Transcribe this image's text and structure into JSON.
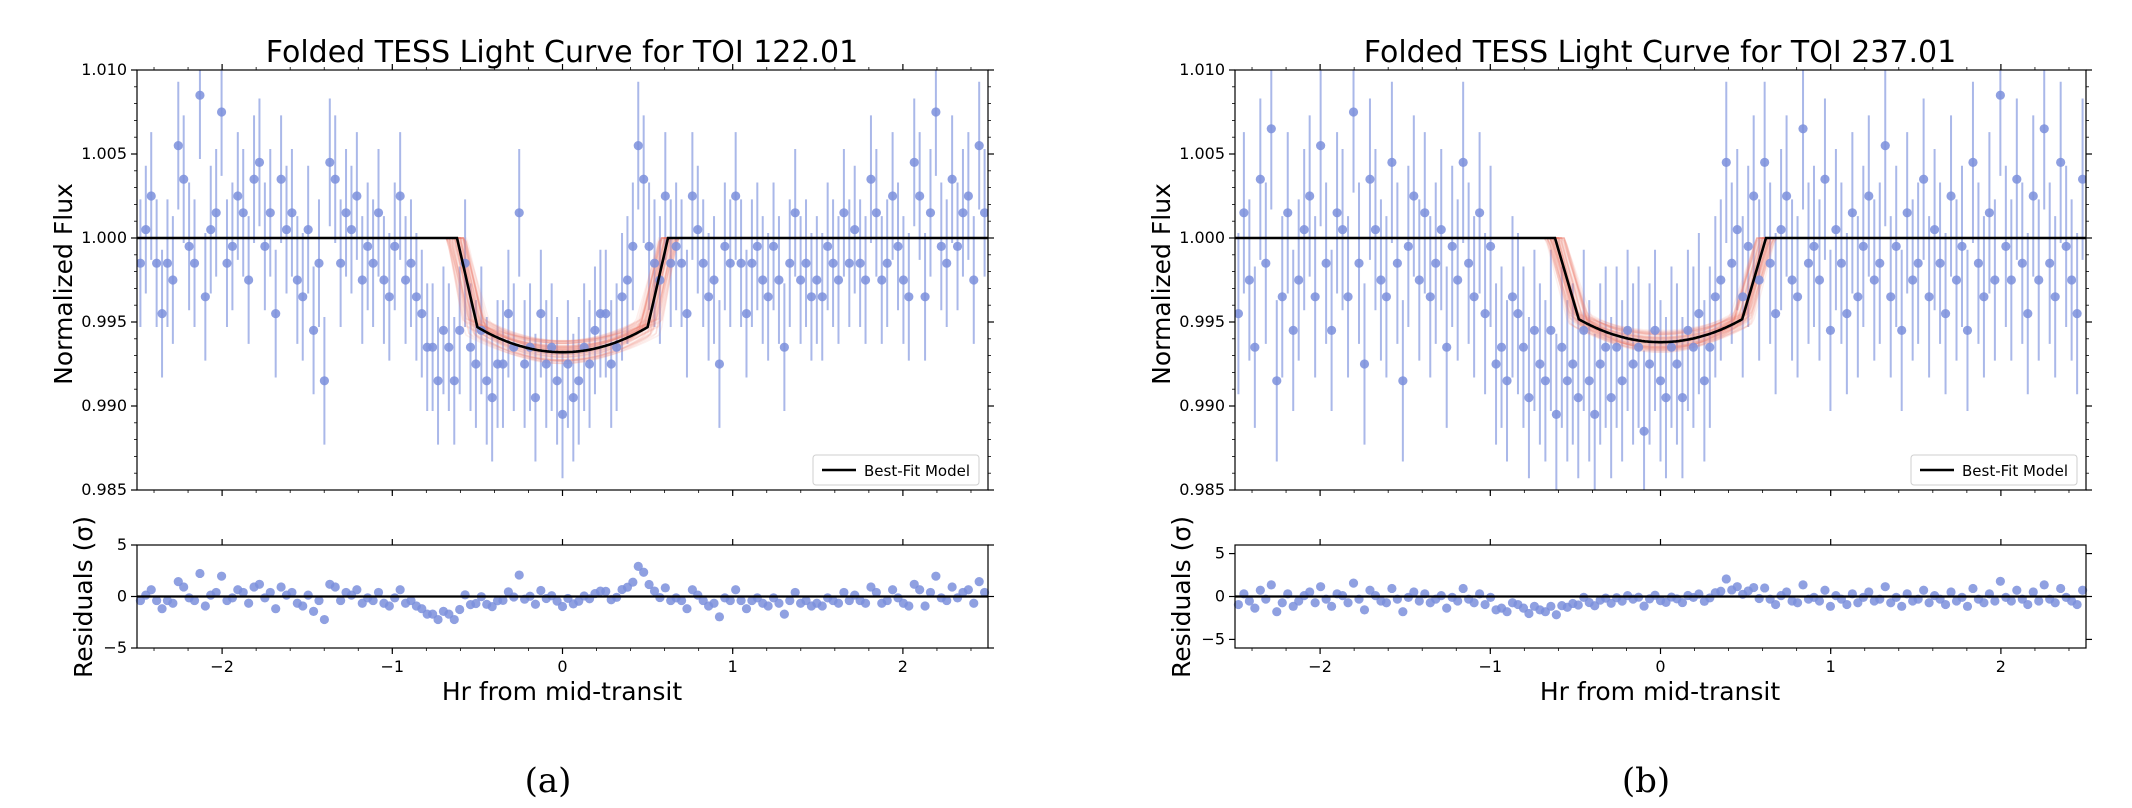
{
  "chart_data": [
    {
      "type": "scatter",
      "title": "Folded TESS Light Curve for TOI 122.01",
      "caption": "(a)",
      "xlabel": "Hr from mid-transit",
      "ylabel": "Normalized Flux",
      "residual_ylabel": "Residuals (σ)",
      "xlim": [
        -2.5,
        2.5
      ],
      "ylim": [
        0.985,
        1.01
      ],
      "residual_ylim": [
        -5,
        5
      ],
      "xticks": [
        -2,
        -1,
        0,
        1,
        2
      ],
      "yticks": [
        0.985,
        0.99,
        0.995,
        1.0,
        1.005,
        1.01
      ],
      "ytick_labels": [
        "0.985",
        "0.990",
        "0.995",
        "1.000",
        "1.005",
        "1.010"
      ],
      "residual_yticks": [
        -5,
        0,
        5
      ],
      "legend": {
        "entries": [
          "Best-Fit Model"
        ],
        "placement": "bottom-right"
      },
      "transit_model": {
        "depth": 0.0068,
        "half_duration_hr": 0.62,
        "ingress_hr": 0.12
      },
      "point_errorbar": 0.0038,
      "flux": [
        0.9985,
        1.0005,
        1.0025,
        0.9985,
        0.9955,
        0.9985,
        0.9975,
        1.0055,
        1.0035,
        0.9995,
        0.9985,
        1.0085,
        0.9965,
        1.0005,
        1.0015,
        1.0075,
        0.9985,
        0.9995,
        1.0025,
        1.0015,
        0.9975,
        1.0035,
        1.0045,
        0.9995,
        1.0015,
        0.9955,
        1.0035,
        1.0005,
        1.0015,
        0.9975,
        0.9965,
        1.0005,
        0.9945,
        0.9985,
        0.9915,
        1.0045,
        1.0035,
        0.9985,
        1.0015,
        1.0005,
        1.0025,
        0.9975,
        0.9995,
        0.9985,
        1.0015,
        0.9975,
        0.9965,
        0.9995,
        1.0025,
        0.9975,
        0.9985,
        0.9965,
        0.9955,
        0.9935,
        0.9935,
        0.9915,
        0.9945,
        0.9935,
        0.9915,
        0.9945,
        0.9985,
        0.9935,
        0.9925,
        0.9945,
        0.9915,
        0.9905,
        0.9925,
        0.9925,
        0.9955,
        0.9935,
        1.0015,
        0.9925,
        0.9935,
        0.9905,
        0.9955,
        0.9925,
        0.9935,
        0.9915,
        0.9895,
        0.9925,
        0.9905,
        0.9915,
        0.9935,
        0.9925,
        0.9945,
        0.9955,
        0.9955,
        0.9925,
        0.9935,
        0.9965,
        0.9975,
        0.9995,
        1.0055,
        1.0035,
        0.9995,
        0.9985,
        0.9975,
        1.0025,
        0.9985,
        0.9995,
        0.9985,
        0.9955,
        1.0025,
        1.0005,
        0.9985,
        0.9965,
        0.9975,
        0.9925,
        0.9995,
        0.9985,
        1.0025,
        0.9985,
        0.9955,
        0.9985,
        0.9995,
        0.9975,
        0.9965,
        0.9995,
        0.9975,
        0.9935,
        0.9985,
        1.0015,
        0.9975,
        0.9985,
        0.9965,
        0.9975,
        0.9965,
        0.9995,
        0.9985,
        0.9975,
        1.0015,
        0.9985,
        1.0005,
        0.9985,
        0.9975,
        1.0035,
        1.0015,
        0.9975,
        0.9985,
        1.0025,
        0.9995,
        0.9975,
        0.9965,
        1.0045,
        1.0025,
        0.9965,
        1.0015,
        1.0075,
        0.9995,
        0.9985,
        1.0035,
        0.9995,
        1.0015,
        1.0025,
        0.9975,
        1.0055,
        1.0015
      ]
    },
    {
      "type": "scatter",
      "title": "Folded TESS Light Curve for TOI 237.01",
      "caption": "(b)",
      "xlabel": "Hr from mid-transit",
      "ylabel": "Normalized Flux",
      "residual_ylabel": "Residuals (σ)",
      "xlim": [
        -2.5,
        2.5
      ],
      "ylim": [
        0.985,
        1.01
      ],
      "residual_ylim": [
        -6,
        6
      ],
      "xticks": [
        -2,
        -1,
        0,
        1,
        2
      ],
      "yticks": [
        0.985,
        0.99,
        0.995,
        1.0,
        1.005,
        1.01
      ],
      "ytick_labels": [
        "0.985",
        "0.990",
        "0.995",
        "1.000",
        "1.005",
        "1.010"
      ],
      "residual_yticks": [
        -5,
        0,
        5
      ],
      "legend": {
        "entries": [
          "Best-Fit Model"
        ],
        "placement": "bottom-right"
      },
      "transit_model": {
        "depth": 0.0062,
        "half_duration_hr": 0.62,
        "ingress_hr": 0.14
      },
      "point_errorbar": 0.0048,
      "flux": [
        0.9955,
        1.0015,
        0.9975,
        0.9935,
        1.0035,
        0.9985,
        1.0065,
        0.9915,
        0.9965,
        1.0015,
        0.9945,
        0.9975,
        1.0005,
        1.0025,
        0.9965,
        1.0055,
        0.9985,
        0.9945,
        1.0015,
        1.0005,
        0.9965,
        1.0075,
        0.9985,
        0.9925,
        1.0035,
        1.0005,
        0.9975,
        0.9965,
        1.0045,
        0.9985,
        0.9915,
        0.9995,
        1.0025,
        0.9975,
        1.0015,
        0.9965,
        0.9985,
        1.0005,
        0.9935,
        0.9995,
        0.9975,
        1.0045,
        0.9985,
        0.9965,
        1.0015,
        0.9955,
        0.9995,
        0.9925,
        0.9935,
        0.9915,
        0.9965,
        0.9955,
        0.9935,
        0.9905,
        0.9945,
        0.9925,
        0.9915,
        0.9945,
        0.9895,
        0.9935,
        0.9915,
        0.9925,
        0.9905,
        0.9945,
        0.9915,
        0.9895,
        0.9925,
        0.9935,
        0.9905,
        0.9935,
        0.9915,
        0.9945,
        0.9925,
        0.9935,
        0.9885,
        0.9925,
        0.9945,
        0.9915,
        0.9905,
        0.9935,
        0.9925,
        0.9905,
        0.9945,
        0.9935,
        0.9955,
        0.9915,
        0.9935,
        0.9965,
        0.9975,
        1.0045,
        0.9985,
        1.0005,
        0.9965,
        0.9995,
        1.0025,
        0.9975,
        1.0045,
        0.9985,
        0.9955,
        1.0005,
        1.0025,
        0.9975,
        0.9965,
        1.0065,
        0.9985,
        0.9995,
        0.9975,
        1.0035,
        0.9945,
        1.0005,
        0.9985,
        0.9955,
        1.0015,
        0.9965,
        0.9995,
        1.0025,
        0.9975,
        0.9985,
        1.0055,
        0.9965,
        0.9995,
        0.9945,
        1.0015,
        0.9975,
        0.9985,
        1.0035,
        0.9965,
        1.0005,
        0.9985,
        0.9955,
        1.0025,
        0.9975,
        0.9995,
        0.9945,
        1.0045,
        0.9985,
        0.9965,
        1.0015,
        0.9975,
        1.0085,
        0.9995,
        0.9975,
        1.0035,
        0.9985,
        0.9955,
        1.0025,
        0.9975,
        1.0065,
        0.9985,
        0.9965,
        1.0045,
        0.9995,
        0.9975,
        0.9955,
        1.0035
      ]
    }
  ],
  "colors": {
    "data_points": "#7b8fdc",
    "errorbars": "#8ea0e2",
    "posterior_models": "#f07a6a",
    "best_fit": "#000000"
  }
}
